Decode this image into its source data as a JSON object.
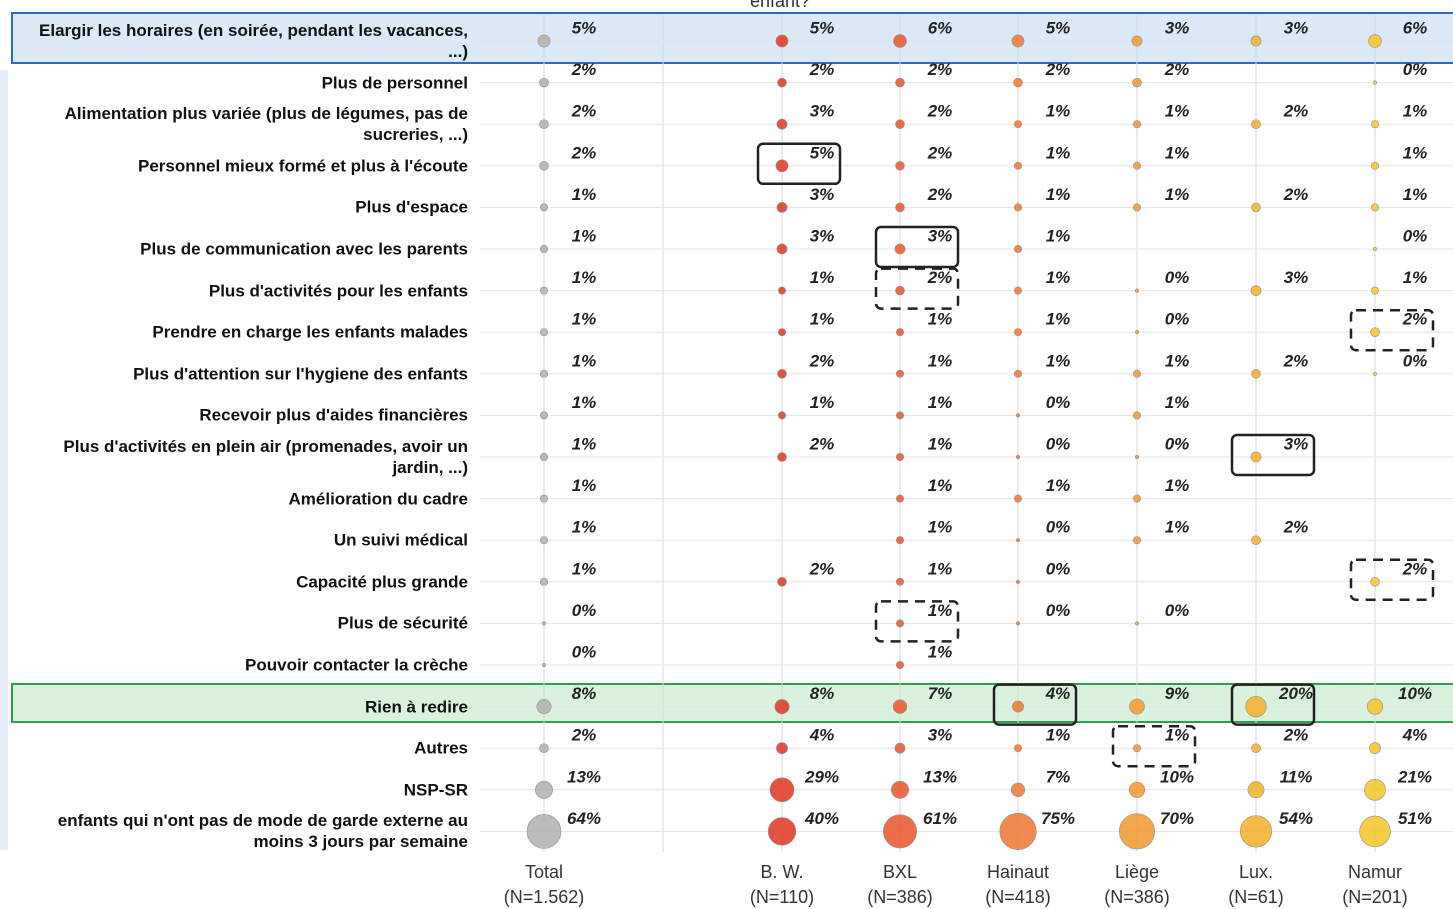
{
  "chart_data": {
    "type": "bubble",
    "title": "enfant?",
    "categories": [
      "Elargir les horaires (en soirée, pendant les vacances, ...)",
      "Plus de personnel",
      "Alimentation plus variée (plus de légumes, pas de sucreries, ...)",
      "Personnel mieux formé et plus à l'écoute",
      "Plus d'espace",
      "Plus de communication avec les parents",
      "Plus d'activités pour les enfants",
      "Prendre en charge les enfants malades",
      "Plus d'attention sur l'hygiene des enfants",
      "Recevoir plus d'aides financières",
      "Plus d'activités en plein air (promenades, avoir un jardin, ...)",
      "Amélioration du cadre",
      "Un suivi médical",
      "Capacité plus grande",
      "Plus de sécurité",
      "Pouvoir contacter la crèche",
      "Rien à redire",
      "Autres",
      "NSP-SR",
      "enfants qui n'ont pas de mode de garde externe au moins 3 jours par semaine"
    ],
    "series": [
      {
        "name": "Total",
        "sample": "(N=1.562)",
        "color": "#b4b4b4",
        "values": [
          5,
          2,
          2,
          2,
          1,
          1,
          1,
          1,
          1,
          1,
          1,
          1,
          1,
          1,
          0,
          0,
          8,
          2,
          13,
          64
        ],
        "value_labels": [
          "5%",
          "2%",
          "2%",
          "2%",
          "1%",
          "1%",
          "1%",
          "1%",
          "1%",
          "1%",
          "1%",
          "1%",
          "1%",
          "1%",
          "0%",
          "0%",
          "8%",
          "2%",
          "13%",
          "64%"
        ]
      },
      {
        "name": "B. W.",
        "sample": "(N=110)",
        "color": "#e2402e",
        "values": [
          5,
          2,
          3,
          5,
          3,
          3,
          1,
          1,
          2,
          1,
          2,
          null,
          null,
          2,
          null,
          null,
          8,
          4,
          29,
          40
        ],
        "value_labels": [
          "5%",
          "2%",
          "3%",
          "5%",
          "3%",
          "3%",
          "1%",
          "1%",
          "2%",
          "1%",
          "2%",
          null,
          null,
          "2%",
          null,
          null,
          "8%",
          "4%",
          "29%",
          "40%"
        ]
      },
      {
        "name": "BXL",
        "sample": "(N=386)",
        "color": "#ea5e36",
        "values": [
          6,
          2,
          2,
          2,
          2,
          3,
          2,
          1,
          1,
          1,
          1,
          1,
          1,
          1,
          1,
          1,
          7,
          3,
          13,
          61
        ],
        "value_labels": [
          "6%",
          "2%",
          "2%",
          "2%",
          "2%",
          "3%",
          "2%",
          "1%",
          "1%",
          "1%",
          "1%",
          "1%",
          "1%",
          "1%",
          "1%",
          "1%",
          "7%",
          "3%",
          "13%",
          "61%"
        ]
      },
      {
        "name": "Hainaut",
        "sample": "(N=418)",
        "color": "#f07e3c",
        "values": [
          5,
          2,
          1,
          1,
          1,
          1,
          1,
          1,
          1,
          0,
          0,
          1,
          0,
          0,
          0,
          null,
          4,
          1,
          7,
          75
        ],
        "value_labels": [
          "5%",
          "2%",
          "1%",
          "1%",
          "1%",
          "1%",
          "1%",
          "1%",
          "1%",
          "0%",
          "0%",
          "1%",
          "0%",
          "0%",
          "0%",
          null,
          "4%",
          "1%",
          "7%",
          "75%"
        ]
      },
      {
        "name": "Liège",
        "sample": "(N=386)",
        "color": "#f29e3a",
        "values": [
          3,
          2,
          1,
          1,
          1,
          null,
          0,
          0,
          1,
          1,
          0,
          1,
          1,
          null,
          0,
          null,
          9,
          1,
          10,
          70
        ],
        "value_labels": [
          "3%",
          "2%",
          "1%",
          "1%",
          "1%",
          null,
          "0%",
          "0%",
          "1%",
          "1%",
          "0%",
          "1%",
          "1%",
          null,
          "0%",
          null,
          "9%",
          "1%",
          "10%",
          "70%"
        ]
      },
      {
        "name": "Lux.",
        "sample": "(N=61)",
        "color": "#f4b432",
        "values": [
          3,
          null,
          2,
          null,
          2,
          null,
          3,
          null,
          2,
          null,
          3,
          null,
          2,
          null,
          null,
          null,
          20,
          2,
          11,
          54
        ],
        "value_labels": [
          "3%",
          null,
          "2%",
          null,
          "2%",
          null,
          "3%",
          null,
          "2%",
          null,
          "3%",
          null,
          "2%",
          null,
          null,
          null,
          "20%",
          "2%",
          "11%",
          "54%"
        ]
      },
      {
        "name": "Namur",
        "sample": "(N=201)",
        "color": "#f4c832",
        "values": [
          6,
          0,
          1,
          1,
          1,
          0,
          1,
          2,
          0,
          null,
          null,
          null,
          null,
          2,
          null,
          null,
          10,
          4,
          21,
          51
        ],
        "value_labels": [
          "6%",
          "0%",
          "1%",
          "1%",
          "1%",
          "0%",
          "1%",
          "2%",
          "0%",
          null,
          null,
          null,
          null,
          "2%",
          null,
          null,
          "10%",
          "4%",
          "21%",
          "51%"
        ]
      }
    ]
  }
}
